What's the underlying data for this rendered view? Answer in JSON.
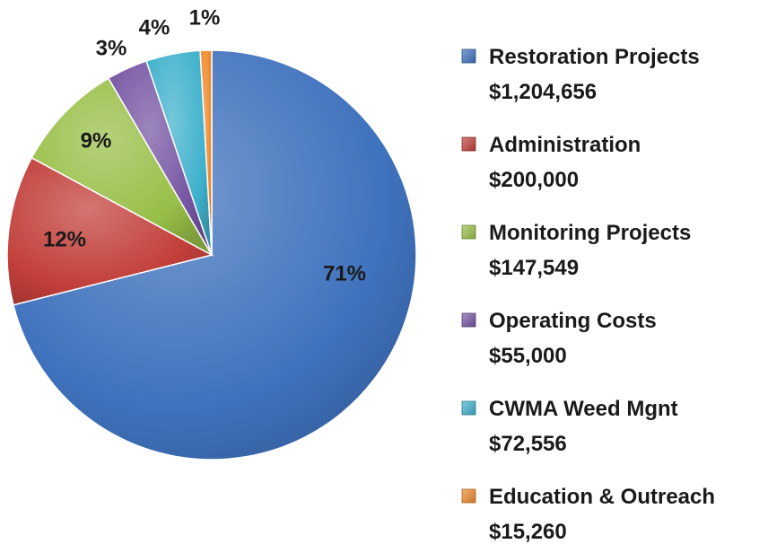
{
  "chart_data": {
    "type": "pie",
    "title": "",
    "series": [
      {
        "name": "Restoration Projects",
        "amount": "$1,204,656",
        "value": 1204656,
        "percent_label": "71%",
        "color": "#3f72bd"
      },
      {
        "name": "Administration",
        "amount": "$200,000",
        "value": 200000,
        "percent_label": "12%",
        "color": "#c23f3a"
      },
      {
        "name": "Monitoring Projects",
        "amount": "$147,549",
        "value": 147549,
        "percent_label": "9%",
        "color": "#98bf48"
      },
      {
        "name": "Operating Costs",
        "amount": "$55,000",
        "value": 55000,
        "percent_label": "3%",
        "color": "#7655a3"
      },
      {
        "name": "CWMA Weed Mgnt",
        "amount": "$72,556",
        "value": 72556,
        "percent_label": "4%",
        "color": "#3fb1cc"
      },
      {
        "name": "Education & Outreach",
        "amount": "$15,260",
        "value": 15260,
        "percent_label": "1%",
        "color": "#ee8a2c"
      }
    ],
    "legend_position": "right",
    "start_angle_deg": 0,
    "direction": "clockwise"
  }
}
